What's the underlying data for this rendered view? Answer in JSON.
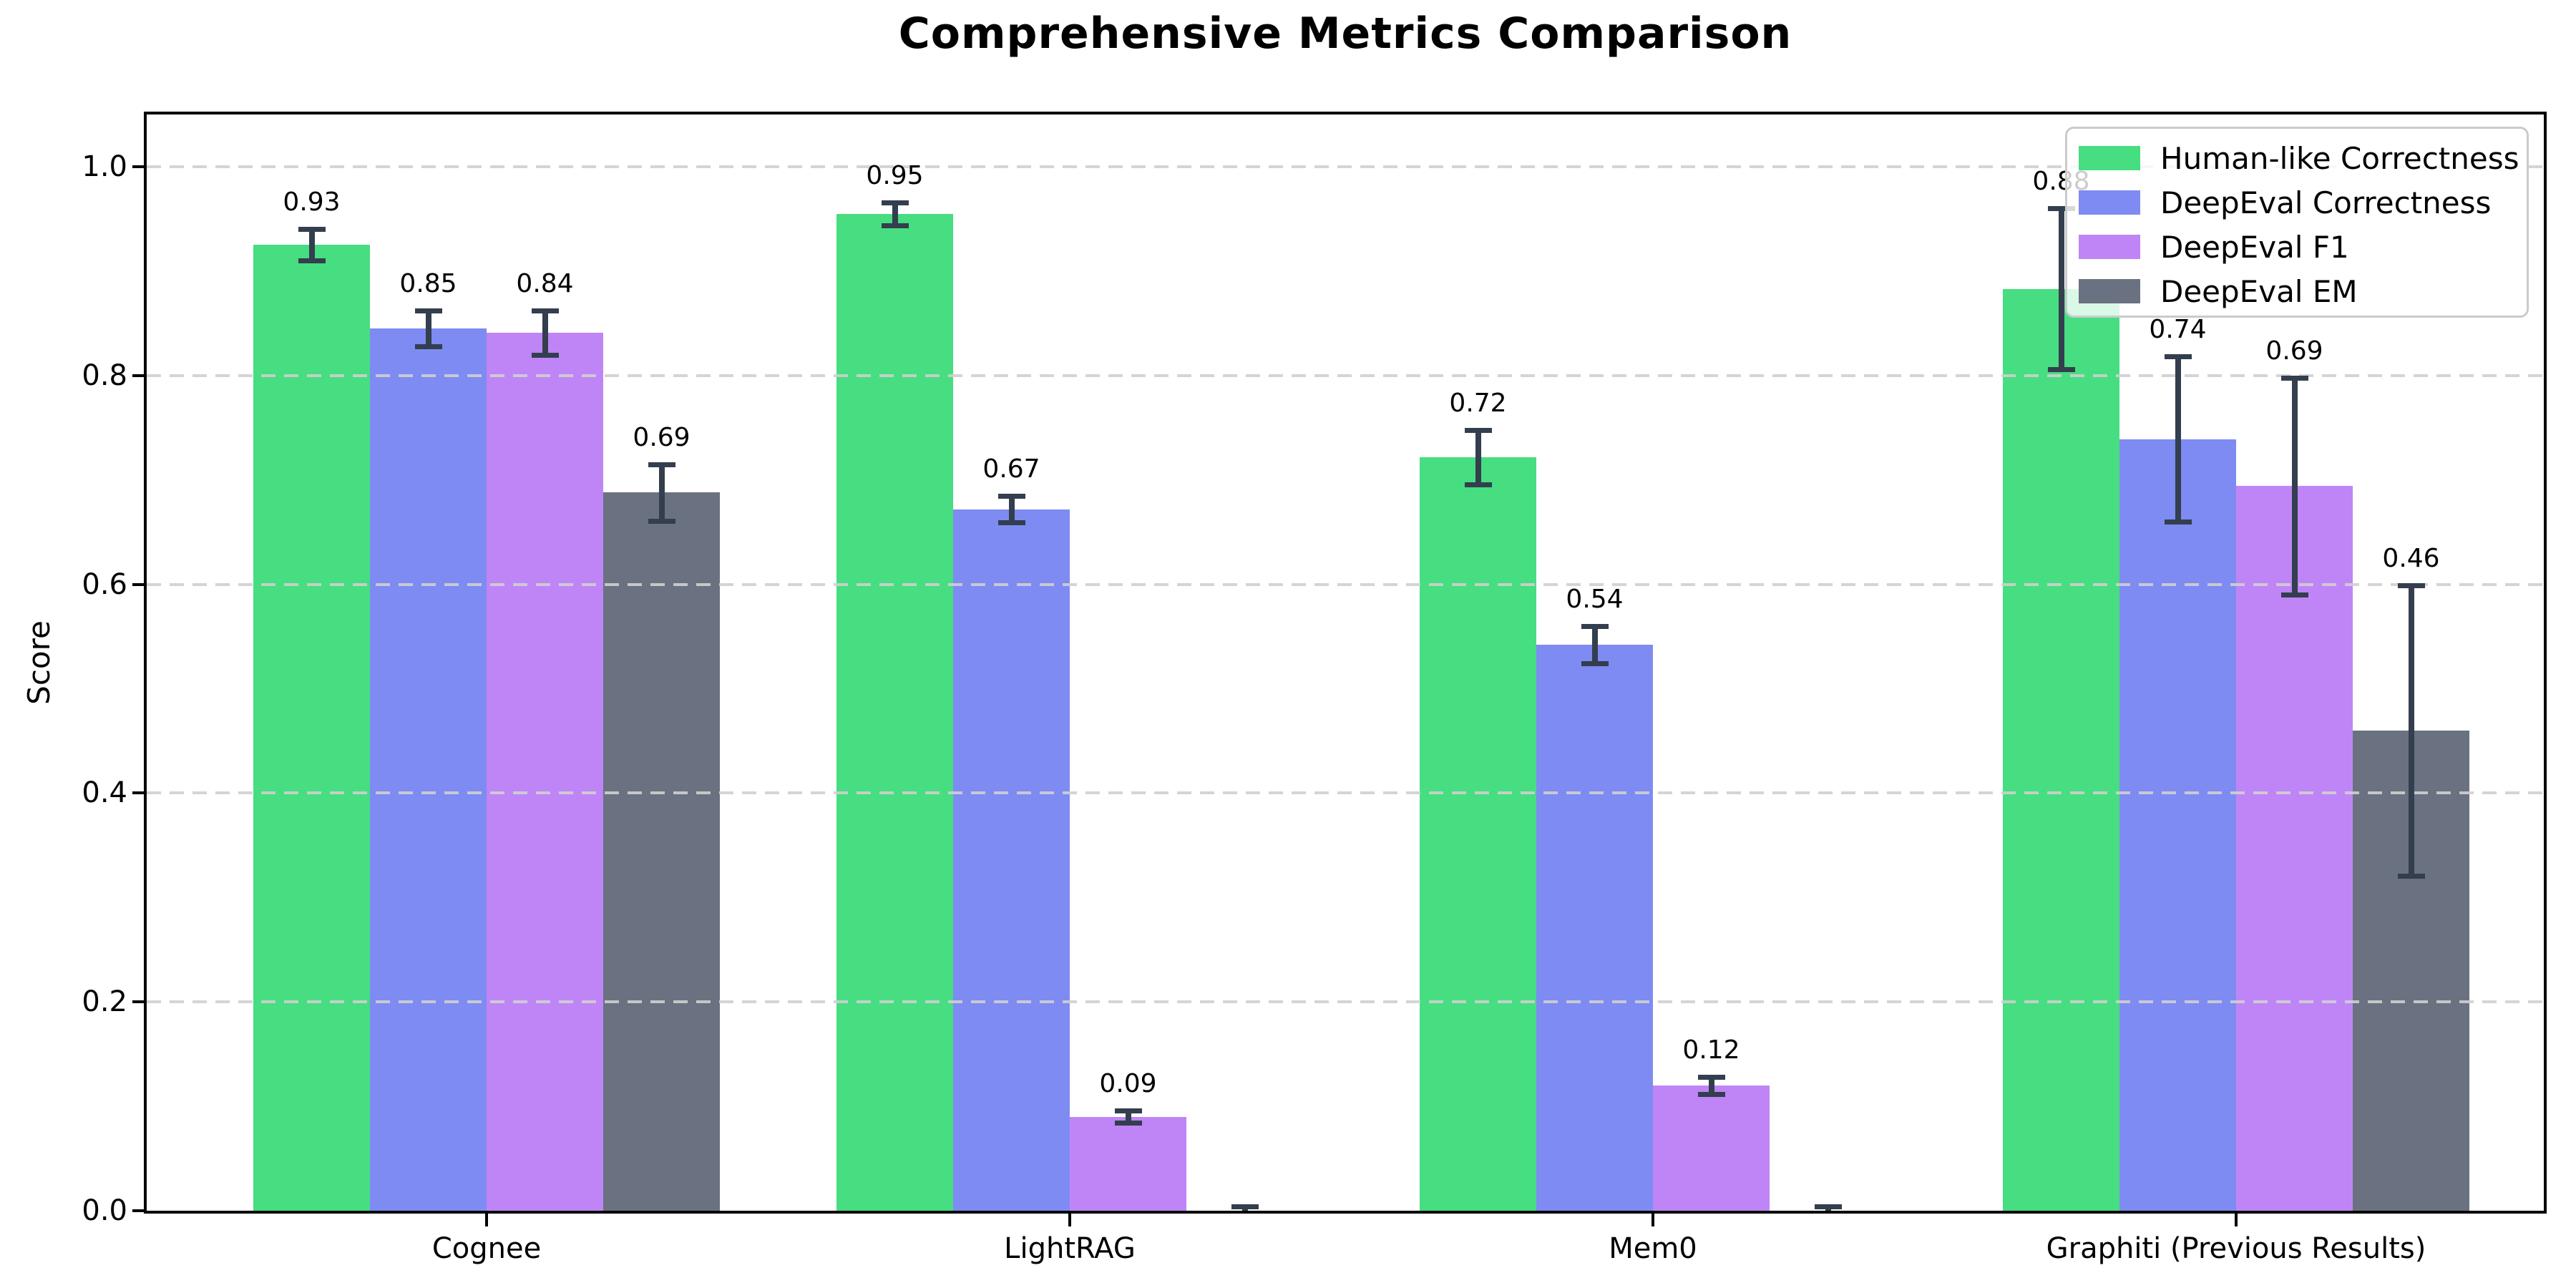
{
  "chart_data": {
    "type": "bar",
    "title": "Comprehensive Metrics Comparison",
    "ylabel": "Score",
    "xlabel": "",
    "categories": [
      "Cognee",
      "LightRAG",
      "Mem0",
      "Graphiti (Previous Results)"
    ],
    "series": [
      {
        "name": "Human-like Correctness",
        "color": "#47dd81",
        "values": [
          0.925,
          0.955,
          0.722,
          0.883
        ],
        "errors": [
          0.015,
          0.011,
          0.026,
          0.077
        ],
        "labels": [
          "0.93",
          "0.95",
          "0.72",
          "0.88"
        ]
      },
      {
        "name": "DeepEval Correctness",
        "color": "#7e8bf2",
        "values": [
          0.845,
          0.672,
          0.542,
          0.739
        ],
        "errors": [
          0.017,
          0.013,
          0.018,
          0.079
        ],
        "labels": [
          "0.85",
          "0.67",
          "0.54",
          "0.74"
        ]
      },
      {
        "name": "DeepEval F1",
        "color": "#bf85f6",
        "values": [
          0.841,
          0.09,
          0.12,
          0.694
        ],
        "errors": [
          0.021,
          0.006,
          0.008,
          0.104
        ],
        "labels": [
          "0.84",
          "0.09",
          "0.12",
          "0.69"
        ]
      },
      {
        "name": "DeepEval EM",
        "color": "#6a7180",
        "values": [
          0.688,
          0.0,
          0.0,
          0.46
        ],
        "errors": [
          0.027,
          0.004,
          0.004,
          0.139
        ],
        "labels": [
          "0.69",
          "",
          "",
          "0.46"
        ]
      }
    ],
    "ylim": [
      0,
      1.05
    ],
    "yticks": [
      0.0,
      0.2,
      0.4,
      0.6,
      0.8,
      1.0
    ],
    "ytick_labels": [
      "0.0",
      "0.2",
      "0.4",
      "0.6",
      "0.8",
      "1.0"
    ],
    "grid": "horizontal-dashed",
    "grid_color": "#d0d0d0",
    "error_bar_color": "#333e4e",
    "legend_position": "upper-right"
  }
}
